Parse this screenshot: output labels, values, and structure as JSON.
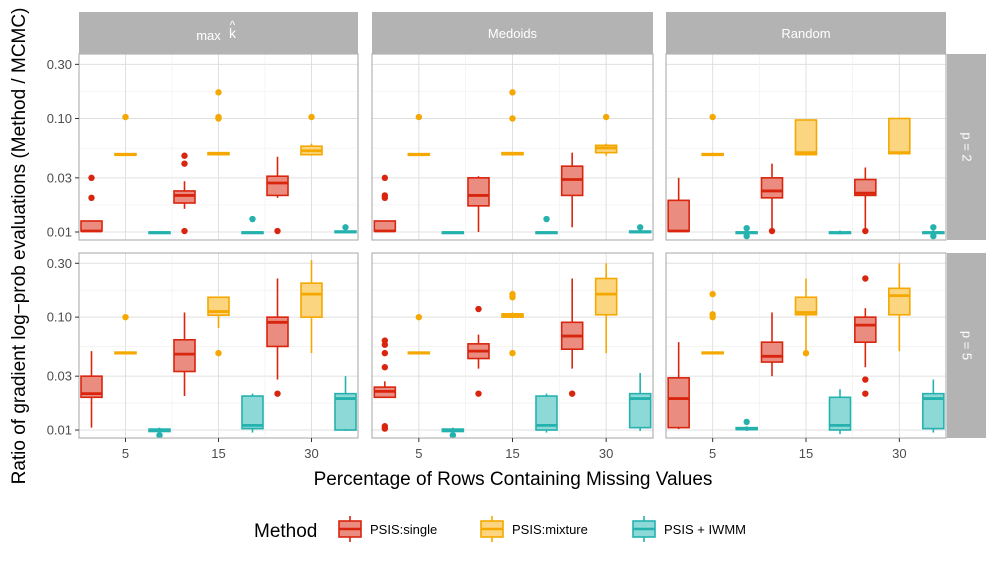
{
  "chart_data": {
    "type": "boxplot",
    "y_axis_label": "Ratio of gradient log−prob evaluations (Method / MCMC)",
    "x_axis_label": "Percentage of Rows Containing Missing Values",
    "y_scale": "log10",
    "y_ticks": [
      0.01,
      0.03,
      0.1,
      0.3
    ],
    "y_tick_labels": [
      "0.01",
      "0.03",
      "0.10",
      "0.30"
    ],
    "x_categories": [
      "5",
      "15",
      "30"
    ],
    "column_facets": [
      {
        "label": "max ",
        "hat_letter": "k",
        "hat_symbol": "^"
      },
      {
        "label": "Medoids"
      },
      {
        "label": "Random"
      }
    ],
    "row_facets": [
      "p = 2",
      "p = 5"
    ],
    "legend": {
      "title": "Method",
      "entries": [
        {
          "label": "PSIS:single",
          "color": "#D9250E",
          "fill": "#EA8D80"
        },
        {
          "label": "PSIS:mixture",
          "color": "#F5A800",
          "fill": "#FBD580"
        },
        {
          "label": "PSIS + IWMM",
          "color": "#25B2AE",
          "fill": "#8DD9D7"
        }
      ]
    },
    "panels": [
      {
        "row": "p = 2",
        "col": "max k-hat",
        "groups": [
          {
            "x": "5",
            "method": "PSIS:single",
            "min": 0.0102,
            "q1": 0.0102,
            "median": 0.0102,
            "q3": 0.0125,
            "max": 0.0125,
            "outliers": [
              0.02,
              0.03
            ]
          },
          {
            "x": "5",
            "method": "PSIS:mixture",
            "min": 0.048,
            "q1": 0.048,
            "median": 0.048,
            "q3": 0.049,
            "max": 0.049,
            "outliers": [
              0.103
            ]
          },
          {
            "x": "5",
            "method": "PSIS + IWMM",
            "min": 0.0098,
            "q1": 0.0098,
            "median": 0.0099,
            "q3": 0.01,
            "max": 0.01,
            "outliers": []
          },
          {
            "x": "15",
            "method": "PSIS:single",
            "min": 0.016,
            "q1": 0.018,
            "median": 0.021,
            "q3": 0.023,
            "max": 0.028,
            "outliers": [
              0.0102,
              0.04,
              0.047
            ]
          },
          {
            "x": "15",
            "method": "PSIS:mixture",
            "min": 0.048,
            "q1": 0.048,
            "median": 0.049,
            "q3": 0.05,
            "max": 0.05,
            "outliers": [
              0.1,
              0.103,
              0.17
            ]
          },
          {
            "x": "15",
            "method": "PSIS + IWMM",
            "min": 0.0098,
            "q1": 0.0098,
            "median": 0.0099,
            "q3": 0.01,
            "max": 0.01,
            "outliers": [
              0.013
            ]
          },
          {
            "x": "30",
            "method": "PSIS:single",
            "min": 0.02,
            "q1": 0.021,
            "median": 0.027,
            "q3": 0.031,
            "max": 0.046,
            "outliers": [
              0.0102
            ]
          },
          {
            "x": "30",
            "method": "PSIS:mixture",
            "min": 0.047,
            "q1": 0.048,
            "median": 0.052,
            "q3": 0.057,
            "max": 0.06,
            "outliers": [
              0.103
            ]
          },
          {
            "x": "30",
            "method": "PSIS + IWMM",
            "min": 0.0098,
            "q1": 0.0099,
            "median": 0.01,
            "q3": 0.0102,
            "max": 0.0105,
            "outliers": [
              0.011
            ]
          }
        ]
      },
      {
        "row": "p = 2",
        "col": "Medoids",
        "groups": [
          {
            "x": "5",
            "method": "PSIS:single",
            "min": 0.0102,
            "q1": 0.0102,
            "median": 0.0102,
            "q3": 0.0125,
            "max": 0.0125,
            "outliers": [
              0.02,
              0.021,
              0.03
            ]
          },
          {
            "x": "5",
            "method": "PSIS:mixture",
            "min": 0.048,
            "q1": 0.048,
            "median": 0.048,
            "q3": 0.049,
            "max": 0.049,
            "outliers": [
              0.103
            ]
          },
          {
            "x": "5",
            "method": "PSIS + IWMM",
            "min": 0.0098,
            "q1": 0.0098,
            "median": 0.0099,
            "q3": 0.01,
            "max": 0.01,
            "outliers": []
          },
          {
            "x": "15",
            "method": "PSIS:single",
            "min": 0.01,
            "q1": 0.017,
            "median": 0.021,
            "q3": 0.03,
            "max": 0.031,
            "outliers": []
          },
          {
            "x": "15",
            "method": "PSIS:mixture",
            "min": 0.047,
            "q1": 0.048,
            "median": 0.049,
            "q3": 0.05,
            "max": 0.05,
            "outliers": [
              0.1,
              0.17
            ]
          },
          {
            "x": "15",
            "method": "PSIS + IWMM",
            "min": 0.0098,
            "q1": 0.0098,
            "median": 0.0099,
            "q3": 0.01,
            "max": 0.01,
            "outliers": [
              0.013
            ]
          },
          {
            "x": "30",
            "method": "PSIS:single",
            "min": 0.011,
            "q1": 0.021,
            "median": 0.029,
            "q3": 0.038,
            "max": 0.05,
            "outliers": []
          },
          {
            "x": "30",
            "method": "PSIS:mixture",
            "min": 0.047,
            "q1": 0.05,
            "median": 0.055,
            "q3": 0.058,
            "max": 0.06,
            "outliers": [
              0.103
            ]
          },
          {
            "x": "30",
            "method": "PSIS + IWMM",
            "min": 0.0098,
            "q1": 0.0099,
            "median": 0.01,
            "q3": 0.0102,
            "max": 0.0105,
            "outliers": [
              0.011
            ]
          }
        ]
      },
      {
        "row": "p = 2",
        "col": "Random",
        "groups": [
          {
            "x": "5",
            "method": "PSIS:single",
            "min": 0.0102,
            "q1": 0.0102,
            "median": 0.0102,
            "q3": 0.019,
            "max": 0.03,
            "outliers": []
          },
          {
            "x": "5",
            "method": "PSIS:mixture",
            "min": 0.047,
            "q1": 0.048,
            "median": 0.048,
            "q3": 0.049,
            "max": 0.05,
            "outliers": [
              0.103
            ]
          },
          {
            "x": "5",
            "method": "PSIS + IWMM",
            "min": 0.0094,
            "q1": 0.0097,
            "median": 0.0099,
            "q3": 0.01,
            "max": 0.0104,
            "outliers": [
              0.0092,
              0.0108
            ]
          },
          {
            "x": "15",
            "method": "PSIS:single",
            "min": 0.0102,
            "q1": 0.02,
            "median": 0.023,
            "q3": 0.03,
            "max": 0.04,
            "outliers": [
              0.0102
            ]
          },
          {
            "x": "15",
            "method": "PSIS:mixture",
            "min": 0.048,
            "q1": 0.048,
            "median": 0.05,
            "q3": 0.097,
            "max": 0.097,
            "outliers": []
          },
          {
            "x": "15",
            "method": "PSIS + IWMM",
            "min": 0.0095,
            "q1": 0.0098,
            "median": 0.0099,
            "q3": 0.01,
            "max": 0.0103,
            "outliers": []
          },
          {
            "x": "30",
            "method": "PSIS:single",
            "min": 0.0102,
            "q1": 0.021,
            "median": 0.022,
            "q3": 0.029,
            "max": 0.037,
            "outliers": [
              0.0102
            ]
          },
          {
            "x": "30",
            "method": "PSIS:mixture",
            "min": 0.048,
            "q1": 0.049,
            "median": 0.05,
            "q3": 0.1,
            "max": 0.1,
            "outliers": []
          },
          {
            "x": "30",
            "method": "PSIS + IWMM",
            "min": 0.0093,
            "q1": 0.0097,
            "median": 0.0099,
            "q3": 0.01,
            "max": 0.0105,
            "outliers": [
              0.0092,
              0.011
            ]
          }
        ]
      },
      {
        "row": "p = 5",
        "col": "max k-hat",
        "groups": [
          {
            "x": "5",
            "method": "PSIS:single",
            "min": 0.0105,
            "q1": 0.0195,
            "median": 0.021,
            "q3": 0.03,
            "max": 0.05,
            "outliers": []
          },
          {
            "x": "5",
            "method": "PSIS:mixture",
            "min": 0.048,
            "q1": 0.048,
            "median": 0.048,
            "q3": 0.049,
            "max": 0.049,
            "outliers": [
              0.1
            ]
          },
          {
            "x": "5",
            "method": "PSIS + IWMM",
            "min": 0.0092,
            "q1": 0.0097,
            "median": 0.0099,
            "q3": 0.0102,
            "max": 0.0105,
            "outliers": [
              0.009
            ]
          },
          {
            "x": "15",
            "method": "PSIS:single",
            "min": 0.02,
            "q1": 0.033,
            "median": 0.047,
            "q3": 0.063,
            "max": 0.11,
            "outliers": []
          },
          {
            "x": "15",
            "method": "PSIS:mixture",
            "min": 0.08,
            "q1": 0.104,
            "median": 0.112,
            "q3": 0.15,
            "max": 0.15,
            "outliers": [
              0.048
            ]
          },
          {
            "x": "15",
            "method": "PSIS + IWMM",
            "min": 0.0095,
            "q1": 0.0103,
            "median": 0.011,
            "q3": 0.02,
            "max": 0.021,
            "outliers": []
          },
          {
            "x": "30",
            "method": "PSIS:single",
            "min": 0.028,
            "q1": 0.055,
            "median": 0.09,
            "q3": 0.1,
            "max": 0.22,
            "outliers": [
              0.021
            ]
          },
          {
            "x": "30",
            "method": "PSIS:mixture",
            "min": 0.048,
            "q1": 0.1,
            "median": 0.16,
            "q3": 0.2,
            "max": 0.32,
            "outliers": []
          },
          {
            "x": "30",
            "method": "PSIS + IWMM",
            "min": 0.0098,
            "q1": 0.01,
            "median": 0.019,
            "q3": 0.021,
            "max": 0.03,
            "outliers": []
          }
        ]
      },
      {
        "row": "p = 5",
        "col": "Medoids",
        "groups": [
          {
            "x": "5",
            "method": "PSIS:single",
            "min": 0.0195,
            "q1": 0.0195,
            "median": 0.022,
            "q3": 0.024,
            "max": 0.027,
            "outliers": [
              0.0103,
              0.0108,
              0.036,
              0.048,
              0.057,
              0.062
            ]
          },
          {
            "x": "5",
            "method": "PSIS:mixture",
            "min": 0.048,
            "q1": 0.048,
            "median": 0.048,
            "q3": 0.049,
            "max": 0.049,
            "outliers": [
              0.1
            ]
          },
          {
            "x": "5",
            "method": "PSIS + IWMM",
            "min": 0.0092,
            "q1": 0.0097,
            "median": 0.0099,
            "q3": 0.0102,
            "max": 0.0105,
            "outliers": [
              0.009
            ]
          },
          {
            "x": "15",
            "method": "PSIS:single",
            "min": 0.035,
            "q1": 0.043,
            "median": 0.05,
            "q3": 0.058,
            "max": 0.07,
            "outliers": [
              0.021,
              0.118
            ]
          },
          {
            "x": "15",
            "method": "PSIS:mixture",
            "min": 0.098,
            "q1": 0.1,
            "median": 0.104,
            "q3": 0.107,
            "max": 0.11,
            "outliers": [
              0.048,
              0.15,
              0.16
            ]
          },
          {
            "x": "15",
            "method": "PSIS + IWMM",
            "min": 0.0095,
            "q1": 0.01,
            "median": 0.011,
            "q3": 0.02,
            "max": 0.021,
            "outliers": []
          },
          {
            "x": "30",
            "method": "PSIS:single",
            "min": 0.035,
            "q1": 0.052,
            "median": 0.068,
            "q3": 0.09,
            "max": 0.22,
            "outliers": [
              0.021
            ]
          },
          {
            "x": "30",
            "method": "PSIS:mixture",
            "min": 0.048,
            "q1": 0.105,
            "median": 0.16,
            "q3": 0.22,
            "max": 0.3,
            "outliers": []
          },
          {
            "x": "30",
            "method": "PSIS + IWMM",
            "min": 0.0098,
            "q1": 0.0105,
            "median": 0.019,
            "q3": 0.021,
            "max": 0.032,
            "outliers": []
          }
        ]
      },
      {
        "row": "p = 5",
        "col": "Random",
        "groups": [
          {
            "x": "5",
            "method": "PSIS:single",
            "min": 0.0102,
            "q1": 0.0105,
            "median": 0.019,
            "q3": 0.029,
            "max": 0.06,
            "outliers": []
          },
          {
            "x": "5",
            "method": "PSIS:mixture",
            "min": 0.048,
            "q1": 0.048,
            "median": 0.048,
            "q3": 0.049,
            "max": 0.049,
            "outliers": [
              0.1,
              0.106,
              0.16
            ]
          },
          {
            "x": "5",
            "method": "PSIS + IWMM",
            "min": 0.0098,
            "q1": 0.0101,
            "median": 0.0102,
            "q3": 0.0105,
            "max": 0.0108,
            "outliers": [
              0.0118
            ]
          },
          {
            "x": "15",
            "method": "PSIS:single",
            "min": 0.03,
            "q1": 0.04,
            "median": 0.045,
            "q3": 0.06,
            "max": 0.11,
            "outliers": []
          },
          {
            "x": "15",
            "method": "PSIS:mixture",
            "min": 0.048,
            "q1": 0.105,
            "median": 0.11,
            "q3": 0.15,
            "max": 0.22,
            "outliers": [
              0.048
            ]
          },
          {
            "x": "15",
            "method": "PSIS + IWMM",
            "min": 0.0092,
            "q1": 0.01,
            "median": 0.011,
            "q3": 0.0195,
            "max": 0.023,
            "outliers": []
          },
          {
            "x": "30",
            "method": "PSIS:single",
            "min": 0.036,
            "q1": 0.06,
            "median": 0.085,
            "q3": 0.1,
            "max": 0.12,
            "outliers": [
              0.021,
              0.028,
              0.22
            ]
          },
          {
            "x": "30",
            "method": "PSIS:mixture",
            "min": 0.05,
            "q1": 0.105,
            "median": 0.155,
            "q3": 0.18,
            "max": 0.3,
            "outliers": []
          },
          {
            "x": "30",
            "method": "PSIS + IWMM",
            "min": 0.0095,
            "q1": 0.0103,
            "median": 0.019,
            "q3": 0.021,
            "max": 0.028,
            "outliers": []
          }
        ]
      }
    ]
  }
}
